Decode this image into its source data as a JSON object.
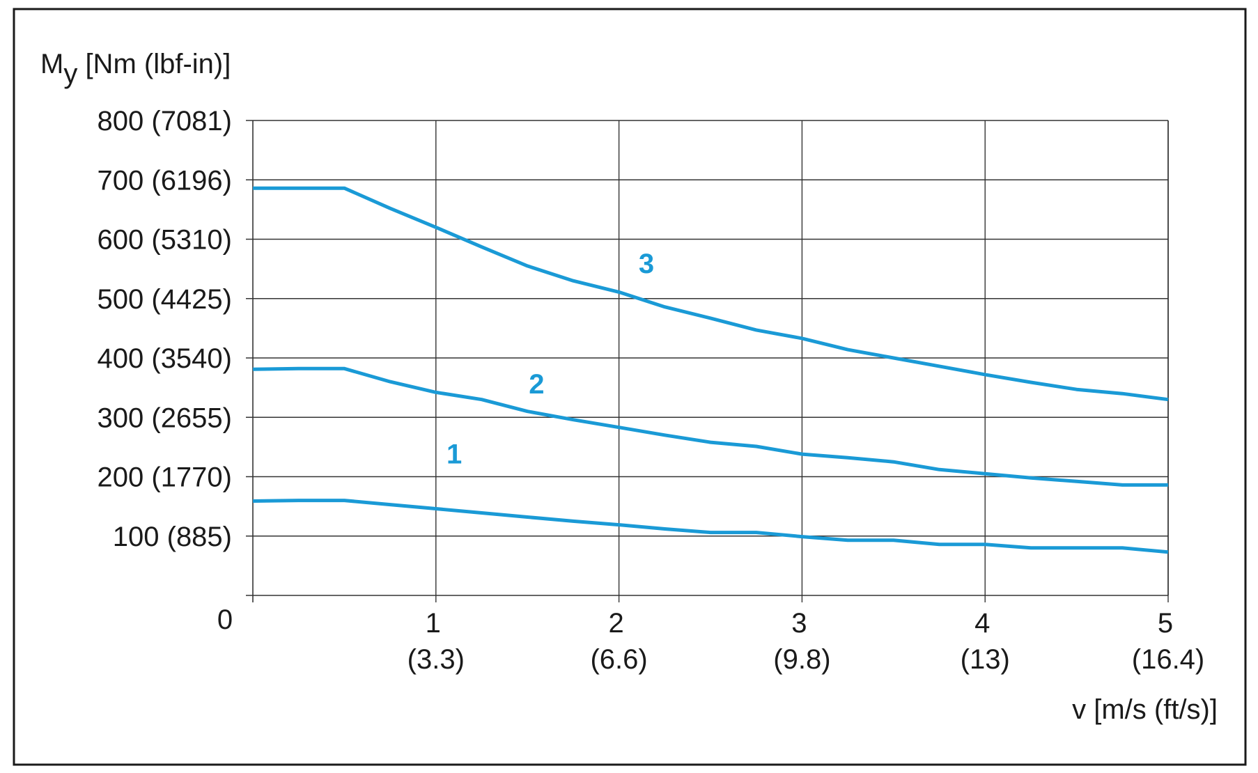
{
  "chart_data": {
    "type": "line",
    "ylabel_main": "M",
    "ylabel_sub": "y",
    "ylabel_rest": " [Nm (lbf-in)]",
    "xlabel": "v [m/s (ft/s)]",
    "xlim": [
      0,
      5
    ],
    "ylim": [
      0,
      800
    ],
    "origin_label": "0",
    "y_ticks": [
      {
        "value": 100,
        "label": "100 (885)"
      },
      {
        "value": 200,
        "label": "200 (1770)"
      },
      {
        "value": 300,
        "label": "300 (2655)"
      },
      {
        "value": 400,
        "label": "400 (3540)"
      },
      {
        "value": 500,
        "label": "500 (4425)"
      },
      {
        "value": 600,
        "label": "600 (5310)"
      },
      {
        "value": 700,
        "label": "700 (6196)"
      },
      {
        "value": 800,
        "label": "800 (7081)"
      }
    ],
    "x_ticks": [
      {
        "value": 1,
        "label": "1",
        "sublabel": "(3.3)"
      },
      {
        "value": 2,
        "label": "2",
        "sublabel": "(6.6)"
      },
      {
        "value": 3,
        "label": "3",
        "sublabel": "(9.8)"
      },
      {
        "value": 4,
        "label": "4",
        "sublabel": "(13)"
      },
      {
        "value": 5,
        "label": "5",
        "sublabel": "(16.4)"
      }
    ],
    "color": "#1a9ad6",
    "series": [
      {
        "name": "1",
        "label_at": {
          "x": 1.1,
          "y": 222
        },
        "x": [
          0,
          0.25,
          0.5,
          0.75,
          1,
          1.25,
          1.5,
          1.75,
          2,
          2.25,
          2.5,
          2.75,
          3,
          3.25,
          3.5,
          3.75,
          4,
          4.25,
          4.5,
          4.75,
          5
        ],
        "y": [
          159,
          160,
          160,
          153,
          146,
          139,
          132,
          125,
          119,
          112,
          106,
          106,
          99,
          93,
          93,
          86,
          86,
          80,
          80,
          80,
          73
        ]
      },
      {
        "name": "2",
        "label_at": {
          "x": 1.55,
          "y": 340
        },
        "x": [
          0,
          0.25,
          0.5,
          0.75,
          1,
          1.25,
          1.5,
          1.75,
          2,
          2.25,
          2.5,
          2.75,
          3,
          3.25,
          3.5,
          3.75,
          4,
          4.25,
          4.5,
          4.75,
          5
        ],
        "y": [
          381,
          382,
          382,
          360,
          342,
          330,
          310,
          296,
          283,
          270,
          258,
          251,
          238,
          232,
          225,
          212,
          205,
          198,
          192,
          186,
          186
        ]
      },
      {
        "name": "3",
        "label_at": {
          "x": 2.15,
          "y": 543
        },
        "x": [
          0,
          0.25,
          0.5,
          0.75,
          1,
          1.25,
          1.5,
          1.75,
          2,
          2.25,
          2.5,
          2.75,
          3,
          3.25,
          3.5,
          3.75,
          4,
          4.25,
          4.5,
          4.75,
          5
        ],
        "y": [
          686,
          686,
          686,
          652,
          620,
          587,
          555,
          530,
          511,
          486,
          467,
          447,
          433,
          414,
          400,
          386,
          372,
          359,
          347,
          340,
          330
        ]
      }
    ]
  }
}
